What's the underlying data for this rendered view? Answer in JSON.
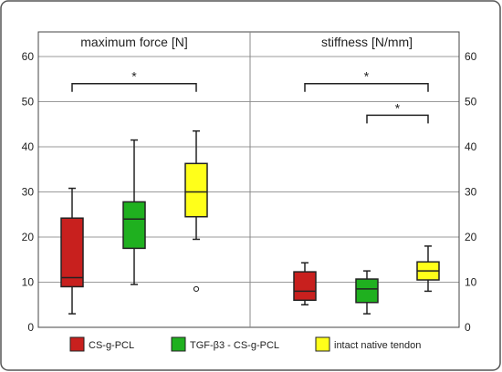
{
  "chart_data": {
    "type": "box",
    "ylim": [
      0,
      60
    ],
    "yticks": [
      0,
      10,
      20,
      30,
      40,
      50,
      60
    ],
    "grid": true,
    "colors": {
      "CS-g-PCL": "#c8201e",
      "TGF-β3 - CS-g-PCL": "#1fb01f",
      "intact native tendon": "#ffff1a"
    },
    "panels": [
      {
        "title": "maximum force [N]",
        "boxes": [
          {
            "group": "CS-g-PCL",
            "min": 3,
            "q1": 9,
            "median": 11,
            "q3": 24.2,
            "max": 30.8,
            "outliers": []
          },
          {
            "group": "TGF-β3 - CS-g-PCL",
            "min": 9.5,
            "q1": 17.5,
            "median": 24,
            "q3": 27.8,
            "max": 41.5,
            "outliers": []
          },
          {
            "group": "intact native tendon",
            "min": 19.5,
            "q1": 24.5,
            "median": 30,
            "q3": 36.3,
            "max": 43.5,
            "outliers": [
              8.5
            ]
          }
        ],
        "significance": [
          {
            "from": "CS-g-PCL",
            "to": "intact native tendon",
            "label": "*",
            "level": 54
          }
        ]
      },
      {
        "title": "stiffness [N/mm]",
        "boxes": [
          {
            "group": "CS-g-PCL",
            "min": 5,
            "q1": 6,
            "median": 8,
            "q3": 12.3,
            "max": 14.3,
            "outliers": []
          },
          {
            "group": "TGF-β3 - CS-g-PCL",
            "min": 3,
            "q1": 5.5,
            "median": 8.5,
            "q3": 10.7,
            "max": 12.5,
            "outliers": []
          },
          {
            "group": "intact native tendon",
            "min": 8,
            "q1": 10.5,
            "median": 12.5,
            "q3": 14.5,
            "max": 18,
            "outliers": []
          }
        ],
        "significance": [
          {
            "from": "CS-g-PCL",
            "to": "intact native tendon",
            "label": "*",
            "level": 54
          },
          {
            "from": "TGF-β3 - CS-g-PCL",
            "to": "intact native tendon",
            "label": "*",
            "level": 47
          }
        ]
      }
    ],
    "legend": [
      {
        "label": "CS-g-PCL",
        "color": "#c8201e"
      },
      {
        "label": "TGF-β3 - CS-g-PCL",
        "color": "#1fb01f"
      },
      {
        "label": "intact native tendon",
        "color": "#ffff1a"
      }
    ],
    "legend_position": "bottom"
  }
}
